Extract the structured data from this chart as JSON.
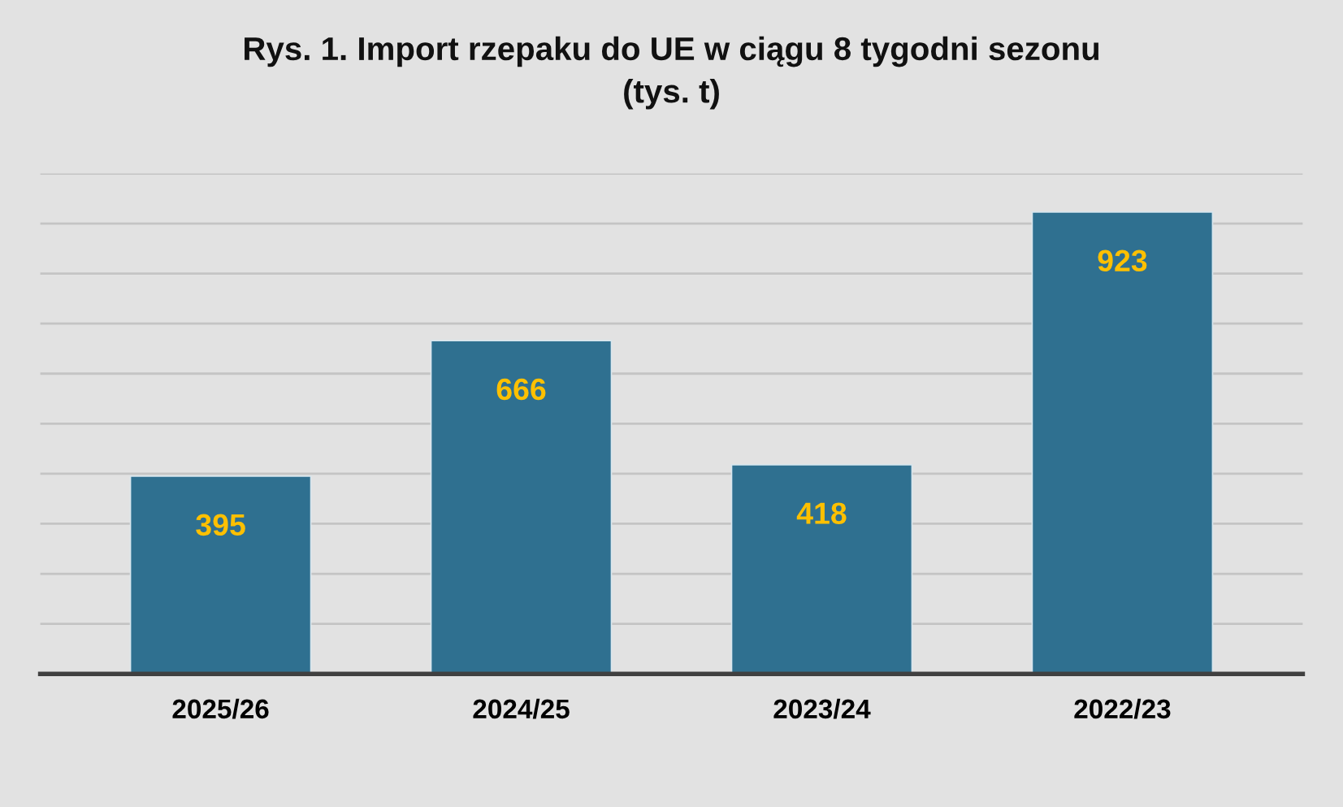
{
  "chart_data": {
    "type": "bar",
    "title": "Rys. 1. Import rzepaku do UE w ciągu 8 tygodni sezonu\n(tys. t)",
    "categories": [
      "2025/26",
      "2024/25",
      "2023/24",
      "2022/23"
    ],
    "values": [
      395,
      666,
      418,
      923
    ],
    "color": "#2f7090",
    "ylim": [
      0,
      1000
    ],
    "yticks": [
      {
        "value": 0,
        "label": null
      },
      {
        "value": 100,
        "label": null
      },
      {
        "value": 200,
        "label": null
      },
      {
        "value": 300,
        "label": null
      },
      {
        "value": 400,
        "label": null
      },
      {
        "value": 500,
        "label": null
      },
      {
        "value": 600,
        "label": null
      },
      {
        "value": 700,
        "label": null
      },
      {
        "value": 800,
        "label": null
      },
      {
        "value": 900,
        "label": null
      },
      {
        "value": 1000,
        "label": null
      }
    ],
    "grid": "y",
    "tick_labels": "x",
    "data_labels": true
  }
}
